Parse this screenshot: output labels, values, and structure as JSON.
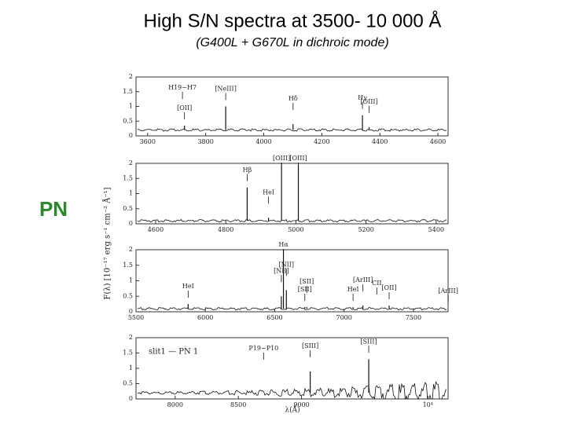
{
  "title": "High S/N spectra at 3500- 10 000 Å",
  "subtitle": "(G400L + G670L in dichroic mode)",
  "side_label": "PN",
  "figure": {
    "y_label": "F(λ) [10⁻¹⁷ erg s⁻¹ cm⁻² Å⁻¹]",
    "x_label": "λ(Å)",
    "panels": [
      {
        "xlim": [
          3560,
          4635
        ],
        "ylim": [
          0,
          2
        ],
        "xticks": [
          3600,
          3800,
          4000,
          4200,
          4400,
          4600
        ],
        "yticks": [
          0,
          0.5,
          1,
          1.5,
          2
        ],
        "continuum": 0.2,
        "lines": [
          {
            "label": "[NeIII]",
            "wavelength": 3869,
            "peak": 1.0
          },
          {
            "label": "H19−H7",
            "wavelength": 3720
          },
          {
            "label": "[OII]",
            "wavelength": 3727,
            "peak": 0.35
          },
          {
            "label": "Hδ",
            "wavelength": 4101,
            "peak": 0.4
          },
          {
            "label": "Hγ",
            "wavelength": 4340,
            "peak": 0.7
          },
          {
            "label": "[OIII]",
            "wavelength": 4363,
            "peak": 0.3
          }
        ]
      },
      {
        "xlim": [
          4544,
          5434
        ],
        "ylim": [
          0,
          2
        ],
        "xticks": [
          4600,
          4800,
          5000,
          5200,
          5400
        ],
        "yticks": [
          0,
          0.5,
          1,
          1.5,
          2
        ],
        "continuum": 0.1,
        "lines": [
          {
            "label": "Hβ",
            "wavelength": 4861,
            "peak": 1.2
          },
          {
            "label": "HeI",
            "wavelength": 4922,
            "peak": 0.2
          },
          {
            "label": "[OIII]",
            "wavelength": 4959,
            "peak": 2
          },
          {
            "label": "[OIII]",
            "wavelength": 5007,
            "peak": 2
          }
        ]
      },
      {
        "xlim": [
          5500,
          7750
        ],
        "ylim": [
          0,
          2
        ],
        "xticks": [
          5500,
          6000,
          6500,
          7000,
          7500
        ],
        "yticks": [
          0,
          0.5,
          1,
          1.5,
          2
        ],
        "continuum": 0.1,
        "lines": [
          {
            "label": "HeI",
            "wavelength": 5876,
            "peak": 0.25
          },
          {
            "label": "[NII]",
            "wavelength": 6548,
            "peak": 0.5
          },
          {
            "label": "Hα",
            "wavelength": 6563,
            "peak": 2
          },
          {
            "label": "[NII]",
            "wavelength": 6584,
            "peak": 0.7
          },
          {
            "label": "[SII]",
            "wavelength": 6717,
            "peak": 0.15
          },
          {
            "label": "[SII]",
            "wavelength": 6731,
            "peak": 0.15
          },
          {
            "label": "HeI",
            "wavelength": 7065,
            "peak": 0.15
          },
          {
            "label": "[ArIII]",
            "wavelength": 7136,
            "peak": 0.2
          },
          {
            "label": "[OII]",
            "wavelength": 7325,
            "peak": 0.2
          },
          {
            "label": "CII",
            "wavelength": 7236,
            "peak": 0.1
          },
          {
            "label": "[ArIII]",
            "wavelength": 7751,
            "peak": 0.1
          }
        ]
      },
      {
        "xlim": [
          7690,
          10160
        ],
        "ylim": [
          0,
          2
        ],
        "xticks": [
          8000,
          8500,
          9000,
          {
            "value": 10000,
            "label": "10⁴"
          }
        ],
        "yticks": [
          0,
          0.5,
          1,
          1.5,
          2
        ],
        "continuum": 0.2,
        "annotation": "slit1 — PN 1",
        "lines": [
          {
            "label": "P19−P10",
            "wavelength": 8700
          },
          {
            "label": "[SIII]",
            "wavelength": 9069,
            "peak": 0.9
          },
          {
            "label": "[SIII]",
            "wavelength": 9532,
            "peak": 1.3
          }
        ]
      }
    ]
  }
}
